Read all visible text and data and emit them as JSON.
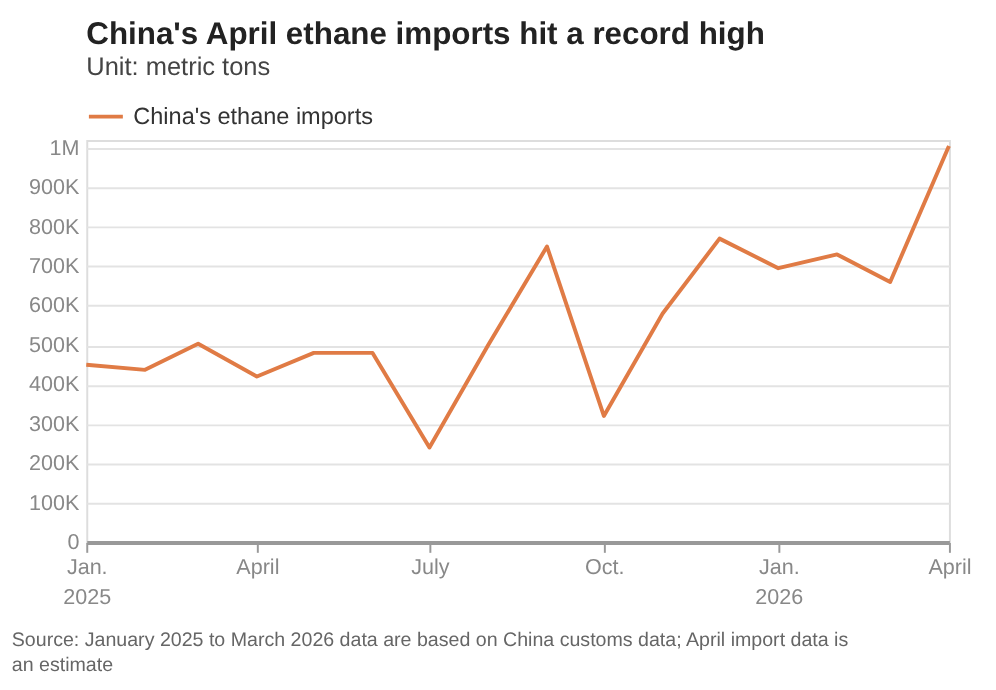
{
  "chart_data": {
    "type": "line",
    "title": "China's April ethane imports hit a record high",
    "subtitle": "Unit: metric tons",
    "x": [
      "2025-01",
      "2025-02",
      "2025-03",
      "2025-04",
      "2025-05",
      "2025-06",
      "2025-07",
      "2025-08",
      "2025-09",
      "2025-10",
      "2025-11",
      "2025-12",
      "2026-01",
      "2026-02",
      "2026-03",
      "2026-04"
    ],
    "series": [
      {
        "name": "China's ethane imports",
        "color": "#e07b45",
        "values": [
          450000,
          437000,
          503000,
          420000,
          480000,
          480000,
          240000,
          500000,
          750000,
          320000,
          580000,
          770000,
          695000,
          730000,
          660000,
          1005000
        ]
      }
    ],
    "ylim": [
      0,
      1020000
    ],
    "yticks": [
      {
        "value": 0,
        "label": "0"
      },
      {
        "value": 100000,
        "label": "100K"
      },
      {
        "value": 200000,
        "label": "200K"
      },
      {
        "value": 300000,
        "label": "300K"
      },
      {
        "value": 400000,
        "label": "400K"
      },
      {
        "value": 500000,
        "label": "500K"
      },
      {
        "value": 600000,
        "label": "600K"
      },
      {
        "value": 700000,
        "label": "700K"
      },
      {
        "value": 800000,
        "label": "800K"
      },
      {
        "value": 900000,
        "label": "900K"
      },
      {
        "value": 1000000,
        "label": "1M"
      }
    ],
    "xlim": [
      "2025-01",
      "2026-04"
    ],
    "xticks": [
      {
        "value": "2025-01",
        "label": "Jan.\n2025"
      },
      {
        "value": "2025-04",
        "label": "April"
      },
      {
        "value": "2025-07",
        "label": "July"
      },
      {
        "value": "2025-10",
        "label": "Oct."
      },
      {
        "value": "2026-01",
        "label": "Jan.\n2026"
      },
      {
        "value": "2026-04",
        "label": "April"
      }
    ],
    "grid": "y",
    "legend": "top left",
    "marker": "none",
    "line_style": "solid",
    "annotations": [
      "Source: January 2025 to March 2026 data are based on China customs data; April import data is an estimate"
    ]
  }
}
